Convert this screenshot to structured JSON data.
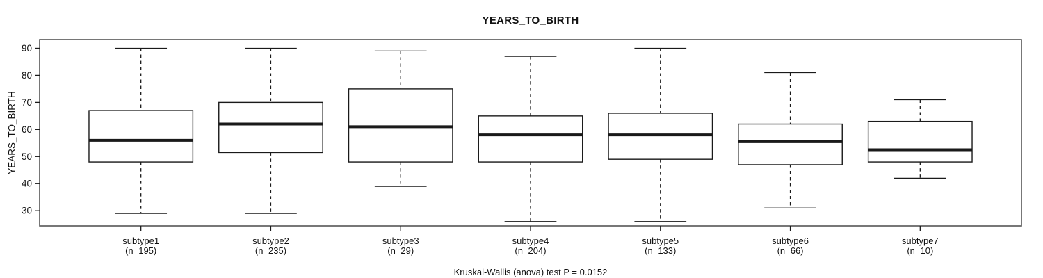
{
  "chart_data": {
    "type": "boxplot",
    "title": "YEARS_TO_BIRTH",
    "ylabel": "YEARS_TO_BIRTH",
    "caption": "Kruskal-Wallis (anova) test P = 0.0152",
    "yticks": [
      30,
      40,
      50,
      60,
      70,
      80,
      90
    ],
    "ylim": [
      24.4,
      93.2
    ],
    "xlim": [
      0.22,
      7.78
    ],
    "grid": false,
    "legend": "none",
    "box_width_units": 0.8,
    "cap_width_units": 0.4,
    "categories": [
      "subtype1",
      "subtype2",
      "subtype3",
      "subtype4",
      "subtype5",
      "subtype6",
      "subtype7"
    ],
    "series": [
      {
        "label": "subtype1",
        "sublabel": "(n=195)",
        "n": 195,
        "whisker_low": 29,
        "q1": 48,
        "median": 56,
        "q3": 67,
        "whisker_high": 90
      },
      {
        "label": "subtype2",
        "sublabel": "(n=235)",
        "n": 235,
        "whisker_low": 29,
        "q1": 51.5,
        "median": 62,
        "q3": 70,
        "whisker_high": 90
      },
      {
        "label": "subtype3",
        "sublabel": "(n=29)",
        "n": 29,
        "whisker_low": 39,
        "q1": 48,
        "median": 61,
        "q3": 75,
        "whisker_high": 89
      },
      {
        "label": "subtype4",
        "sublabel": "(n=204)",
        "n": 204,
        "whisker_low": 26,
        "q1": 48,
        "median": 58,
        "q3": 65,
        "whisker_high": 87
      },
      {
        "label": "subtype5",
        "sublabel": "(n=133)",
        "n": 133,
        "whisker_low": 26,
        "q1": 49,
        "median": 58,
        "q3": 66,
        "whisker_high": 90
      },
      {
        "label": "subtype6",
        "sublabel": "(n=66)",
        "n": 66,
        "whisker_low": 31,
        "q1": 47,
        "median": 55.5,
        "q3": 62,
        "whisker_high": 81
      },
      {
        "label": "subtype7",
        "sublabel": "(n=10)",
        "n": 10,
        "whisker_low": 42,
        "q1": 48,
        "median": 52.5,
        "q3": 63,
        "whisker_high": 71
      }
    ],
    "colors": {
      "line": "#1a1a1a",
      "frame": "#555555",
      "box_fill": "#ffffff",
      "background": "#ffffff"
    }
  }
}
